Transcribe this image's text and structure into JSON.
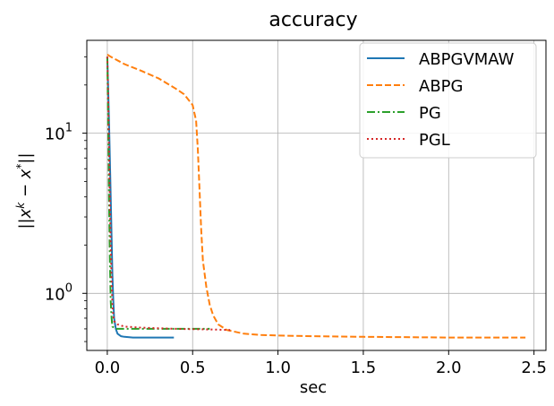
{
  "chart_data": {
    "type": "line",
    "title": "accuracy",
    "xlabel": "sec",
    "ylabel": "||x^k − x^*||",
    "ylabel_parts": {
      "pre": "||",
      "base1": "x",
      "sup1": "k",
      "mid": " − ",
      "base2": "x",
      "sup2": "*",
      "post": "||"
    },
    "xscale": "linear",
    "yscale": "log",
    "xlim": [
      -0.12,
      2.57
    ],
    "ylim": [
      0.44,
      38
    ],
    "grid": true,
    "legend_position": "top-right",
    "x_ticks": [
      0.0,
      0.5,
      1.0,
      1.5,
      2.0,
      2.5
    ],
    "x_tick_labels": [
      "0.0",
      "0.5",
      "1.0",
      "1.5",
      "2.0",
      "2.5"
    ],
    "y_ticks": [
      1,
      10
    ],
    "y_tick_labels": [
      {
        "base": "10",
        "exp": "0"
      },
      {
        "base": "10",
        "exp": "1"
      }
    ],
    "series": [
      {
        "name": "ABPGVMAW",
        "color": "#1f77b4",
        "dash": "solid",
        "x": [
          0.0,
          0.01,
          0.02,
          0.03,
          0.035,
          0.04,
          0.05,
          0.06,
          0.08,
          0.1,
          0.15,
          0.2,
          0.3,
          0.39
        ],
        "y": [
          30,
          12,
          4,
          1.3,
          0.9,
          0.7,
          0.6,
          0.56,
          0.54,
          0.535,
          0.53,
          0.53,
          0.53,
          0.53
        ]
      },
      {
        "name": "ABPG",
        "color": "#ff7f0e",
        "dash": "dashed",
        "x": [
          0.0,
          0.02,
          0.1,
          0.2,
          0.3,
          0.4,
          0.45,
          0.5,
          0.52,
          0.53,
          0.54,
          0.55,
          0.56,
          0.58,
          0.6,
          0.62,
          0.65,
          0.7,
          0.8,
          0.9,
          1.0,
          1.2,
          1.5,
          2.0,
          2.45
        ],
        "y": [
          31,
          30,
          27,
          24.5,
          22,
          19,
          17.5,
          15,
          12,
          8,
          4.5,
          2.5,
          1.6,
          1.1,
          0.85,
          0.73,
          0.64,
          0.59,
          0.56,
          0.55,
          0.545,
          0.54,
          0.535,
          0.53,
          0.53
        ]
      },
      {
        "name": "PG",
        "color": "#2ca02c",
        "dash": "dashdot",
        "x": [
          0.0,
          0.005,
          0.01,
          0.015,
          0.02,
          0.025,
          0.03,
          0.05,
          0.1,
          0.2,
          0.4,
          0.6
        ],
        "y": [
          30,
          12,
          4,
          1.7,
          0.9,
          0.7,
          0.62,
          0.6,
          0.6,
          0.6,
          0.6,
          0.6
        ]
      },
      {
        "name": "PGL",
        "color": "#d62728",
        "dash": "dotted",
        "x": [
          0.0,
          0.005,
          0.01,
          0.015,
          0.02,
          0.025,
          0.03,
          0.035,
          0.04,
          0.06,
          0.1,
          0.2,
          0.4,
          0.6,
          0.72
        ],
        "y": [
          30,
          18,
          8,
          4,
          2,
          1.2,
          0.85,
          0.72,
          0.67,
          0.64,
          0.62,
          0.61,
          0.6,
          0.595,
          0.59
        ]
      }
    ]
  }
}
